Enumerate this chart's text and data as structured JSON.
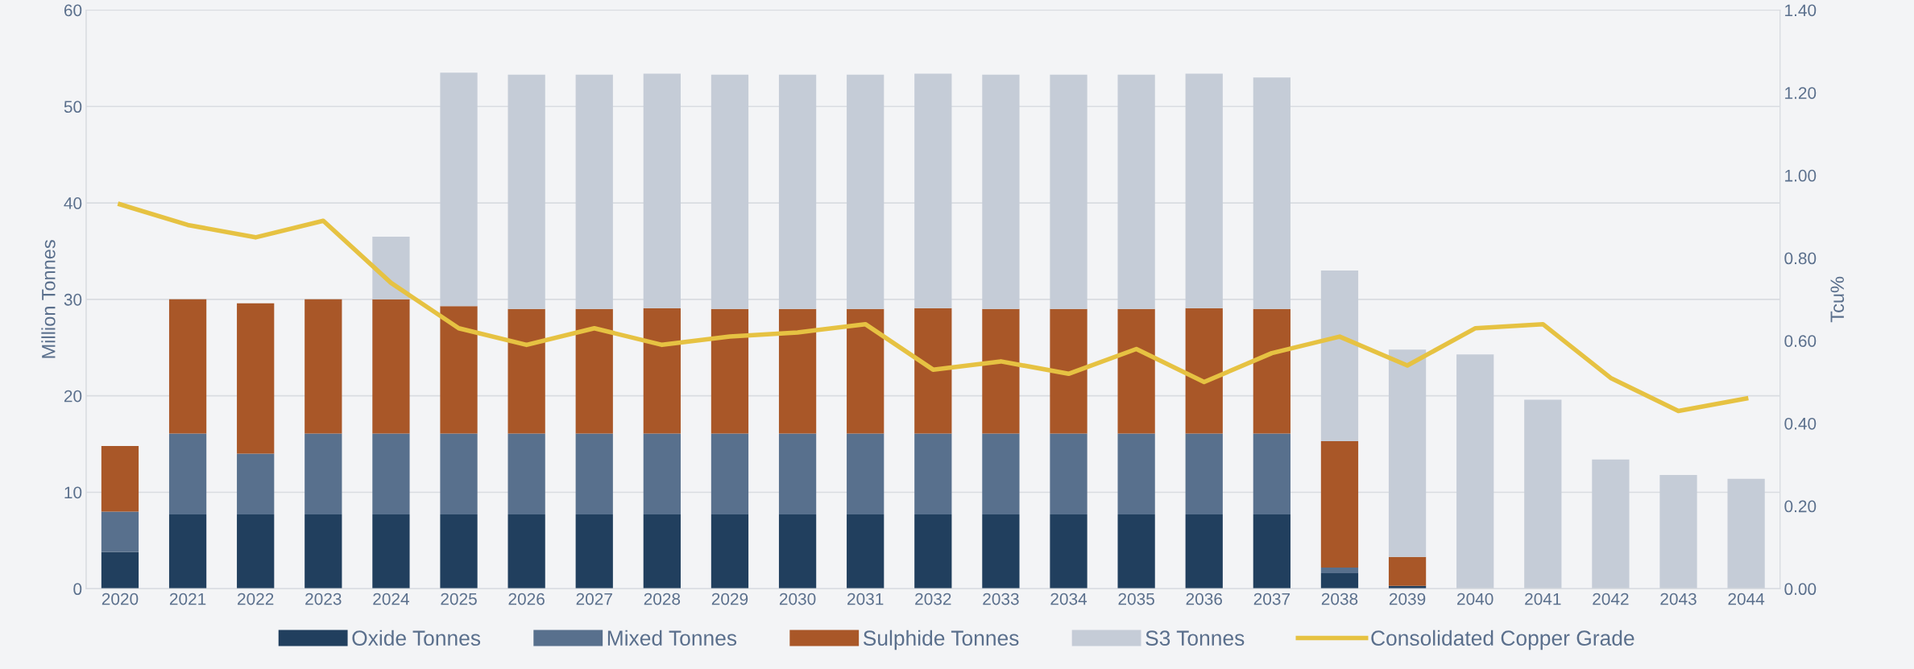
{
  "chart_data": {
    "type": "bar",
    "stacked": true,
    "ylabel": "Million Tonnes",
    "y2label": "Tcu%",
    "categories": [
      "2020",
      "2021",
      "2022",
      "2023",
      "2024",
      "2025",
      "2026",
      "2027",
      "2028",
      "2029",
      "2030",
      "2031",
      "2032",
      "2033",
      "2034",
      "2035",
      "2036",
      "2037",
      "2038",
      "2039",
      "2040",
      "2041",
      "2042",
      "2043",
      "2044"
    ],
    "series": [
      {
        "name": "Oxide Tonnes",
        "color": "#213f5e",
        "values": [
          3.8,
          7.7,
          7.7,
          7.7,
          7.7,
          7.7,
          7.7,
          7.7,
          7.7,
          7.7,
          7.7,
          7.7,
          7.7,
          7.7,
          7.7,
          7.7,
          7.7,
          7.7,
          1.6,
          0.3,
          0,
          0,
          0,
          0,
          0
        ]
      },
      {
        "name": "Mixed Tonnes",
        "color": "#58708d",
        "values": [
          4.2,
          8.4,
          6.3,
          8.4,
          8.4,
          8.4,
          8.4,
          8.4,
          8.4,
          8.4,
          8.4,
          8.4,
          8.4,
          8.4,
          8.4,
          8.4,
          8.4,
          8.4,
          0.6,
          0,
          0,
          0,
          0,
          0,
          0
        ]
      },
      {
        "name": "Sulphide Tonnes",
        "color": "#a95728",
        "values": [
          6.8,
          13.9,
          15.6,
          13.9,
          13.9,
          13.2,
          12.9,
          12.9,
          13.0,
          12.9,
          12.9,
          12.9,
          13.0,
          12.9,
          12.9,
          12.9,
          13.0,
          12.9,
          13.1,
          3.0,
          0,
          0,
          0,
          0,
          0
        ]
      },
      {
        "name": "S3 Tonnes",
        "color": "#c5ccd7",
        "values": [
          0,
          0,
          0,
          0,
          6.5,
          24.2,
          24.3,
          24.3,
          24.3,
          24.3,
          24.3,
          24.3,
          24.3,
          24.3,
          24.3,
          24.3,
          24.3,
          24.0,
          17.7,
          21.5,
          24.3,
          19.6,
          13.4,
          11.8,
          11.4
        ]
      },
      {
        "name": "Consolidated Copper Grade",
        "type": "line",
        "axis": "y2",
        "color": "#e6c242",
        "values": [
          0.93,
          0.88,
          0.85,
          0.89,
          0.74,
          0.63,
          0.59,
          0.63,
          0.59,
          0.61,
          0.62,
          0.64,
          0.53,
          0.55,
          0.52,
          0.58,
          0.5,
          0.57,
          0.61,
          0.54,
          0.63,
          0.64,
          0.51,
          0.43,
          0.46
        ]
      }
    ],
    "ylim": [
      0,
      60
    ],
    "yticks": [
      0,
      10,
      20,
      30,
      40,
      50,
      60
    ],
    "y2lim": [
      0,
      1.4
    ],
    "y2ticks": [
      {
        "value": 0,
        "label": "0.00"
      },
      {
        "value": 0.2,
        "label": "0.20"
      },
      {
        "value": 0.4,
        "label": "0.40"
      },
      {
        "value": 0.6,
        "label": "0.60"
      },
      {
        "value": 0.8,
        "label": "0.80"
      },
      {
        "value": 1.0,
        "label": "1.00"
      },
      {
        "value": 1.2,
        "label": "1.20"
      },
      {
        "value": 1.4,
        "label": "1.40"
      }
    ],
    "grid": "y",
    "legend": "bottom"
  }
}
